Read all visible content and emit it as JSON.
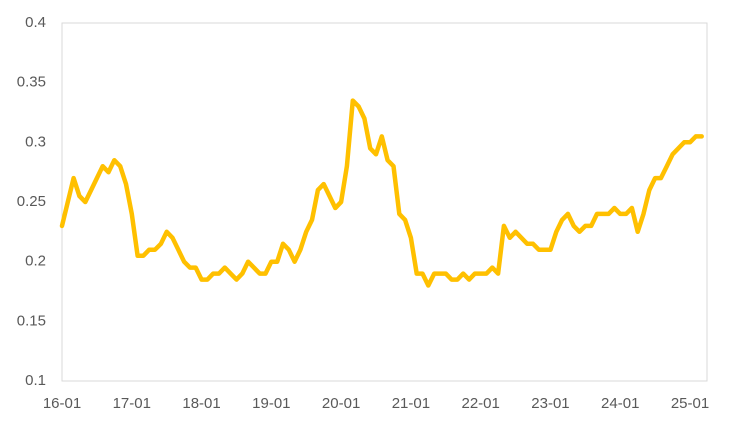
{
  "chart_data": {
    "type": "line",
    "categories": [
      "16-01",
      null,
      null,
      null,
      null,
      null,
      null,
      null,
      null,
      null,
      null,
      null,
      "17-01",
      null,
      null,
      null,
      null,
      null,
      null,
      null,
      null,
      null,
      null,
      null,
      "18-01",
      null,
      null,
      null,
      null,
      null,
      null,
      null,
      null,
      null,
      null,
      null,
      "19-01",
      null,
      null,
      null,
      null,
      null,
      null,
      null,
      null,
      null,
      null,
      null,
      "20-01",
      null,
      null,
      null,
      null,
      null,
      null,
      null,
      null,
      null,
      null,
      null,
      "21-01",
      null,
      null,
      null,
      null,
      null,
      null,
      null,
      null,
      null,
      null,
      null,
      "22-01",
      null,
      null,
      null,
      null,
      null,
      null,
      null,
      null,
      null,
      null,
      null,
      "23-01",
      null,
      null,
      null,
      null,
      null,
      null,
      null,
      null,
      null,
      null,
      null,
      "24-01",
      null,
      null,
      null,
      null,
      null,
      null,
      null,
      null,
      null,
      null,
      null,
      "25-01",
      null,
      null
    ],
    "series": [
      {
        "color": "#FFC000",
        "values": [
          0.23,
          0.25,
          0.27,
          0.255,
          0.25,
          0.26,
          0.27,
          0.28,
          0.275,
          0.285,
          0.28,
          0.265,
          0.24,
          0.205,
          0.205,
          0.21,
          0.21,
          0.215,
          0.225,
          0.22,
          0.21,
          0.2,
          0.195,
          0.195,
          0.185,
          0.185,
          0.19,
          0.19,
          0.195,
          0.19,
          0.185,
          0.19,
          0.2,
          0.195,
          0.19,
          0.19,
          0.2,
          0.2,
          0.215,
          0.21,
          0.2,
          0.21,
          0.225,
          0.235,
          0.26,
          0.265,
          0.255,
          0.245,
          0.25,
          0.28,
          0.335,
          0.33,
          0.32,
          0.295,
          0.29,
          0.305,
          0.285,
          0.28,
          0.24,
          0.235,
          0.22,
          0.19,
          0.19,
          0.18,
          0.19,
          0.19,
          0.19,
          0.185,
          0.185,
          0.19,
          0.185,
          0.19,
          0.19,
          0.19,
          0.195,
          0.19,
          0.23,
          0.22,
          0.225,
          0.22,
          0.215,
          0.215,
          0.21,
          0.21,
          0.21,
          0.225,
          0.235,
          0.24,
          0.23,
          0.225,
          0.23,
          0.23,
          0.24,
          0.24,
          0.24,
          0.245,
          0.24,
          0.24,
          0.245,
          0.225,
          0.24,
          0.26,
          0.27,
          0.27,
          0.28,
          0.29,
          0.295,
          0.3,
          0.3,
          0.305,
          0.305
        ]
      }
    ],
    "ylim": [
      0.1,
      0.4
    ],
    "yticks": [
      0.1,
      0.15,
      0.2,
      0.25,
      0.3,
      0.35,
      0.4
    ],
    "grid": false
  }
}
